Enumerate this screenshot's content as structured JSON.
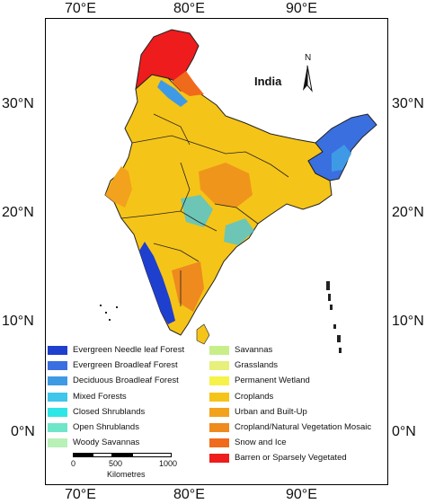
{
  "axes": {
    "top": [
      "70°E",
      "80°E",
      "90°E"
    ],
    "bottom": [
      "70°E",
      "80°E",
      "90°E"
    ],
    "left": [
      "30°N",
      "20°N",
      "10°N",
      "0°N"
    ],
    "right": [
      "30°N",
      "20°N",
      "10°N",
      "0°N"
    ]
  },
  "country_label": "India",
  "north_letter": "N",
  "legend": [
    {
      "label": "Evergreen Needle leaf Forest",
      "color": "#1f3fcf"
    },
    {
      "label": "Evergreen Broadleaf Forest",
      "color": "#3a6fe0"
    },
    {
      "label": "Deciduous Broadleaf Forest",
      "color": "#3f9ae6"
    },
    {
      "label": "Mixed Forests",
      "color": "#3fc6ea"
    },
    {
      "label": "Closed Shrublands",
      "color": "#2ee6e6"
    },
    {
      "label": "Open Shrublands",
      "color": "#6fe6c8"
    },
    {
      "label": "Woody Savannas",
      "color": "#b8f0b8"
    },
    {
      "label": "Savannas",
      "color": "#c8ee8a"
    },
    {
      "label": "Grasslands",
      "color": "#e6f07a"
    },
    {
      "label": "Permanent Wetland",
      "color": "#f6f24a"
    },
    {
      "label": "Croplands",
      "color": "#f5c418"
    },
    {
      "label": "Urban and Built-Up",
      "color": "#f2a21c"
    },
    {
      "label": "Cropland/Natural Vegetation Mosaic",
      "color": "#ee8a1e"
    },
    {
      "label": "Snow and Ice",
      "color": "#f06a1c"
    },
    {
      "label": "Barren or Sparsely Vegetated",
      "color": "#ee1c1c"
    }
  ],
  "scale_bar": {
    "ticks": [
      "0",
      "500",
      "1000"
    ],
    "units": "Kilometres"
  }
}
